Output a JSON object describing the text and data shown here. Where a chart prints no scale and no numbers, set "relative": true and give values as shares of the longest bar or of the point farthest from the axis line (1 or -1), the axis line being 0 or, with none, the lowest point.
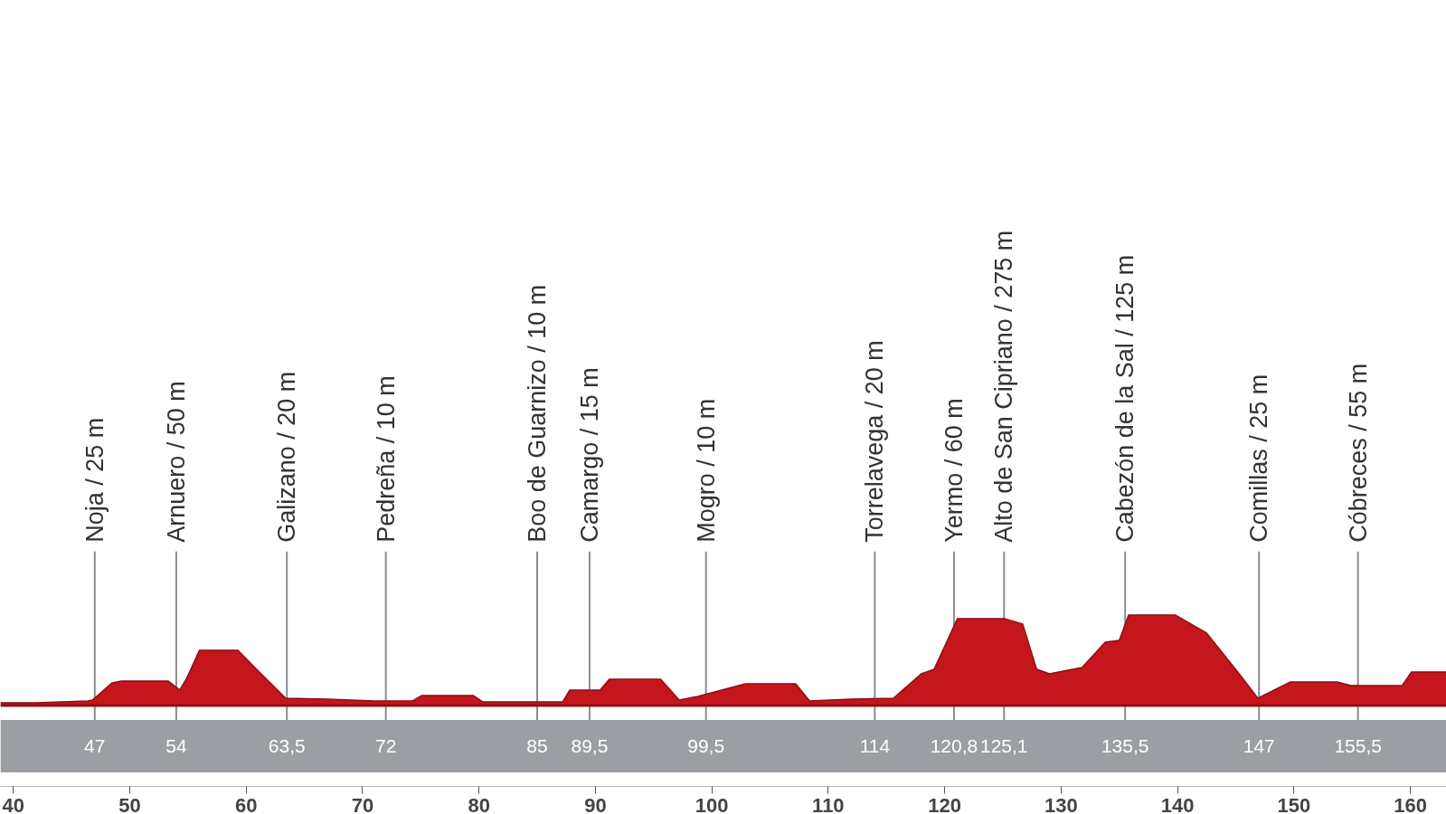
{
  "chart_data": {
    "type": "area",
    "relative": true,
    "xlim": [
      38.9,
      163.1
    ],
    "xticks": [
      40,
      50,
      60,
      70,
      80,
      90,
      100,
      110,
      120,
      130,
      140,
      150,
      160
    ],
    "grid": false,
    "annotations": [
      "47",
      "54",
      "63,5",
      "72",
      "85",
      "89,5",
      "99,5",
      "114",
      "120,8",
      "125,1",
      "135,5",
      "147",
      "155,5"
    ],
    "x": [
      38.9,
      42,
      46.4,
      46.8,
      48.5,
      49.3,
      53.3,
      54.3,
      54.9,
      56,
      59.3,
      60.9,
      63.4,
      67,
      71,
      74.3,
      75.1,
      79.5,
      80.3,
      87.2,
      87.8,
      90.4,
      91.2,
      95.6,
      97.2,
      98.8,
      102.9,
      107.2,
      108.4,
      112,
      115.6,
      118,
      119.1,
      121.1,
      125.1,
      126.7,
      127.9,
      129,
      131.8,
      133.8,
      135,
      135.8,
      139.8,
      142.5,
      145.3,
      146.9,
      149.7,
      153.7,
      154.9,
      159.3,
      160.1,
      163.1
    ],
    "series": [
      {
        "color": "#c4161c",
        "values": [
          0.03,
          0.03,
          0.05,
          0.06,
          0.25,
          0.27,
          0.27,
          0.17,
          0.3,
          0.61,
          0.61,
          0.4,
          0.08,
          0.07,
          0.05,
          0.05,
          0.11,
          0.11,
          0.04,
          0.04,
          0.17,
          0.17,
          0.29,
          0.29,
          0.06,
          0.1,
          0.24,
          0.24,
          0.05,
          0.07,
          0.08,
          0.35,
          0.4,
          0.96,
          0.96,
          0.9,
          0.4,
          0.35,
          0.42,
          0.7,
          0.72,
          1.0,
          1.0,
          0.8,
          0.35,
          0.08,
          0.26,
          0.26,
          0.22,
          0.22,
          0.37,
          0.37
        ]
      }
    ],
    "ref_lines": [
      {
        "axis": "x",
        "value": 47,
        "label": "Noja / 25 m"
      },
      {
        "axis": "x",
        "value": 54,
        "label": "Arnuero / 50 m"
      },
      {
        "axis": "x",
        "value": 63.5,
        "label": "Galizano / 20 m"
      },
      {
        "axis": "x",
        "value": 72,
        "label": "Pedreña / 10 m"
      },
      {
        "axis": "x",
        "value": 85,
        "label": "Boo de Guarnizo / 10 m"
      },
      {
        "axis": "x",
        "value": 89.5,
        "label": "Camargo / 15 m"
      },
      {
        "axis": "x",
        "value": 99.5,
        "label": "Mogro / 10 m"
      },
      {
        "axis": "x",
        "value": 114,
        "label": "Torrelavega / 20 m"
      },
      {
        "axis": "x",
        "value": 120.8,
        "label": "Yermo / 60 m"
      },
      {
        "axis": "x",
        "value": 125.1,
        "label": "Alto de San Cipriano / 275 m"
      },
      {
        "axis": "x",
        "value": 135.5,
        "label": "Cabezón de la Sal / 125 m"
      },
      {
        "axis": "x",
        "value": 147,
        "label": "Comillas / 25 m"
      },
      {
        "axis": "x",
        "value": 155.5,
        "label": "Cóbreces / 55 m"
      }
    ]
  }
}
